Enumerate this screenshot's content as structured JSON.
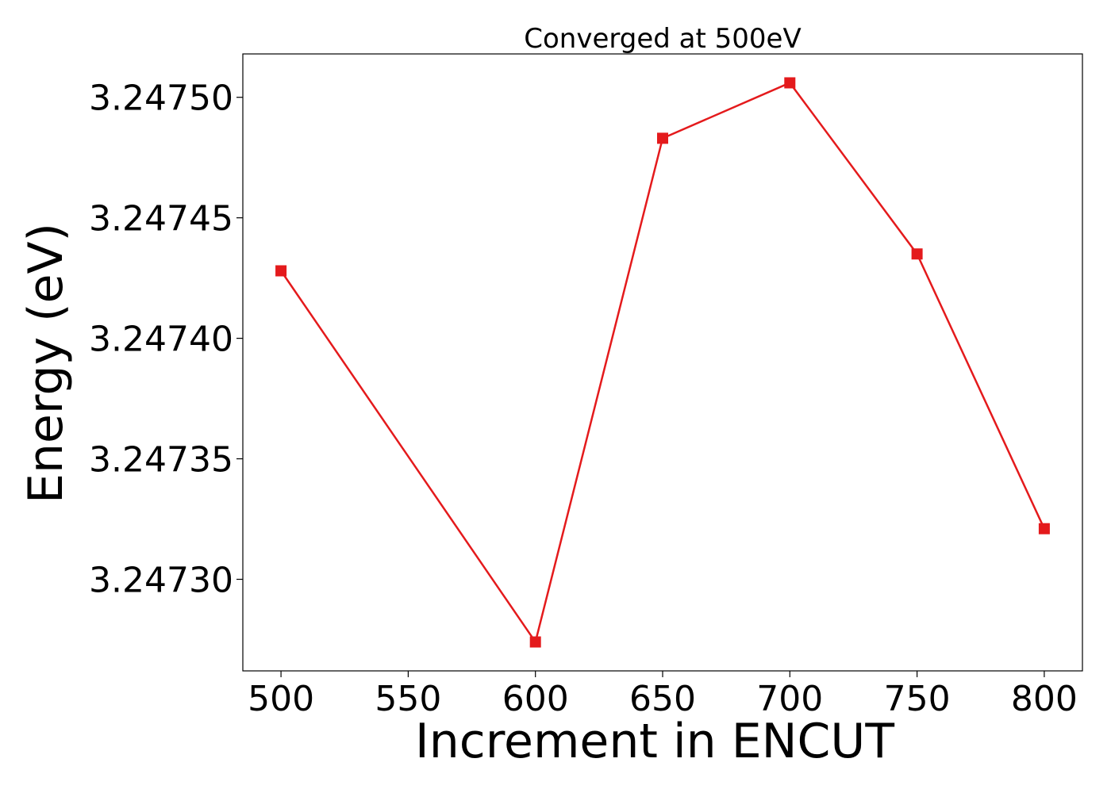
{
  "chart_data": {
    "type": "line",
    "title": "Converged at 500eV",
    "xlabel": "Increment in ENCUT",
    "ylabel": "Energy (eV)",
    "x": [
      500,
      600,
      650,
      700,
      750,
      800
    ],
    "series": [
      {
        "values": [
          3.247428,
          3.247274,
          3.247483,
          3.247506,
          3.247435,
          3.247321
        ],
        "color": "#e41a1c",
        "marker": "square"
      }
    ],
    "xlim": [
      485,
      815
    ],
    "ylim": [
      3.247262,
      3.247518
    ],
    "xticks": [
      500,
      550,
      600,
      650,
      700,
      750,
      800
    ],
    "xtick_labels": [
      "500",
      "550",
      "600",
      "650",
      "700",
      "750",
      "800"
    ],
    "yticks": [
      3.2473,
      3.24735,
      3.2474,
      3.24745,
      3.2475
    ],
    "ytick_labels": [
      "3.24730",
      "3.24735",
      "3.24740",
      "3.24745",
      "3.24750"
    ],
    "grid": false,
    "legend": "none"
  }
}
